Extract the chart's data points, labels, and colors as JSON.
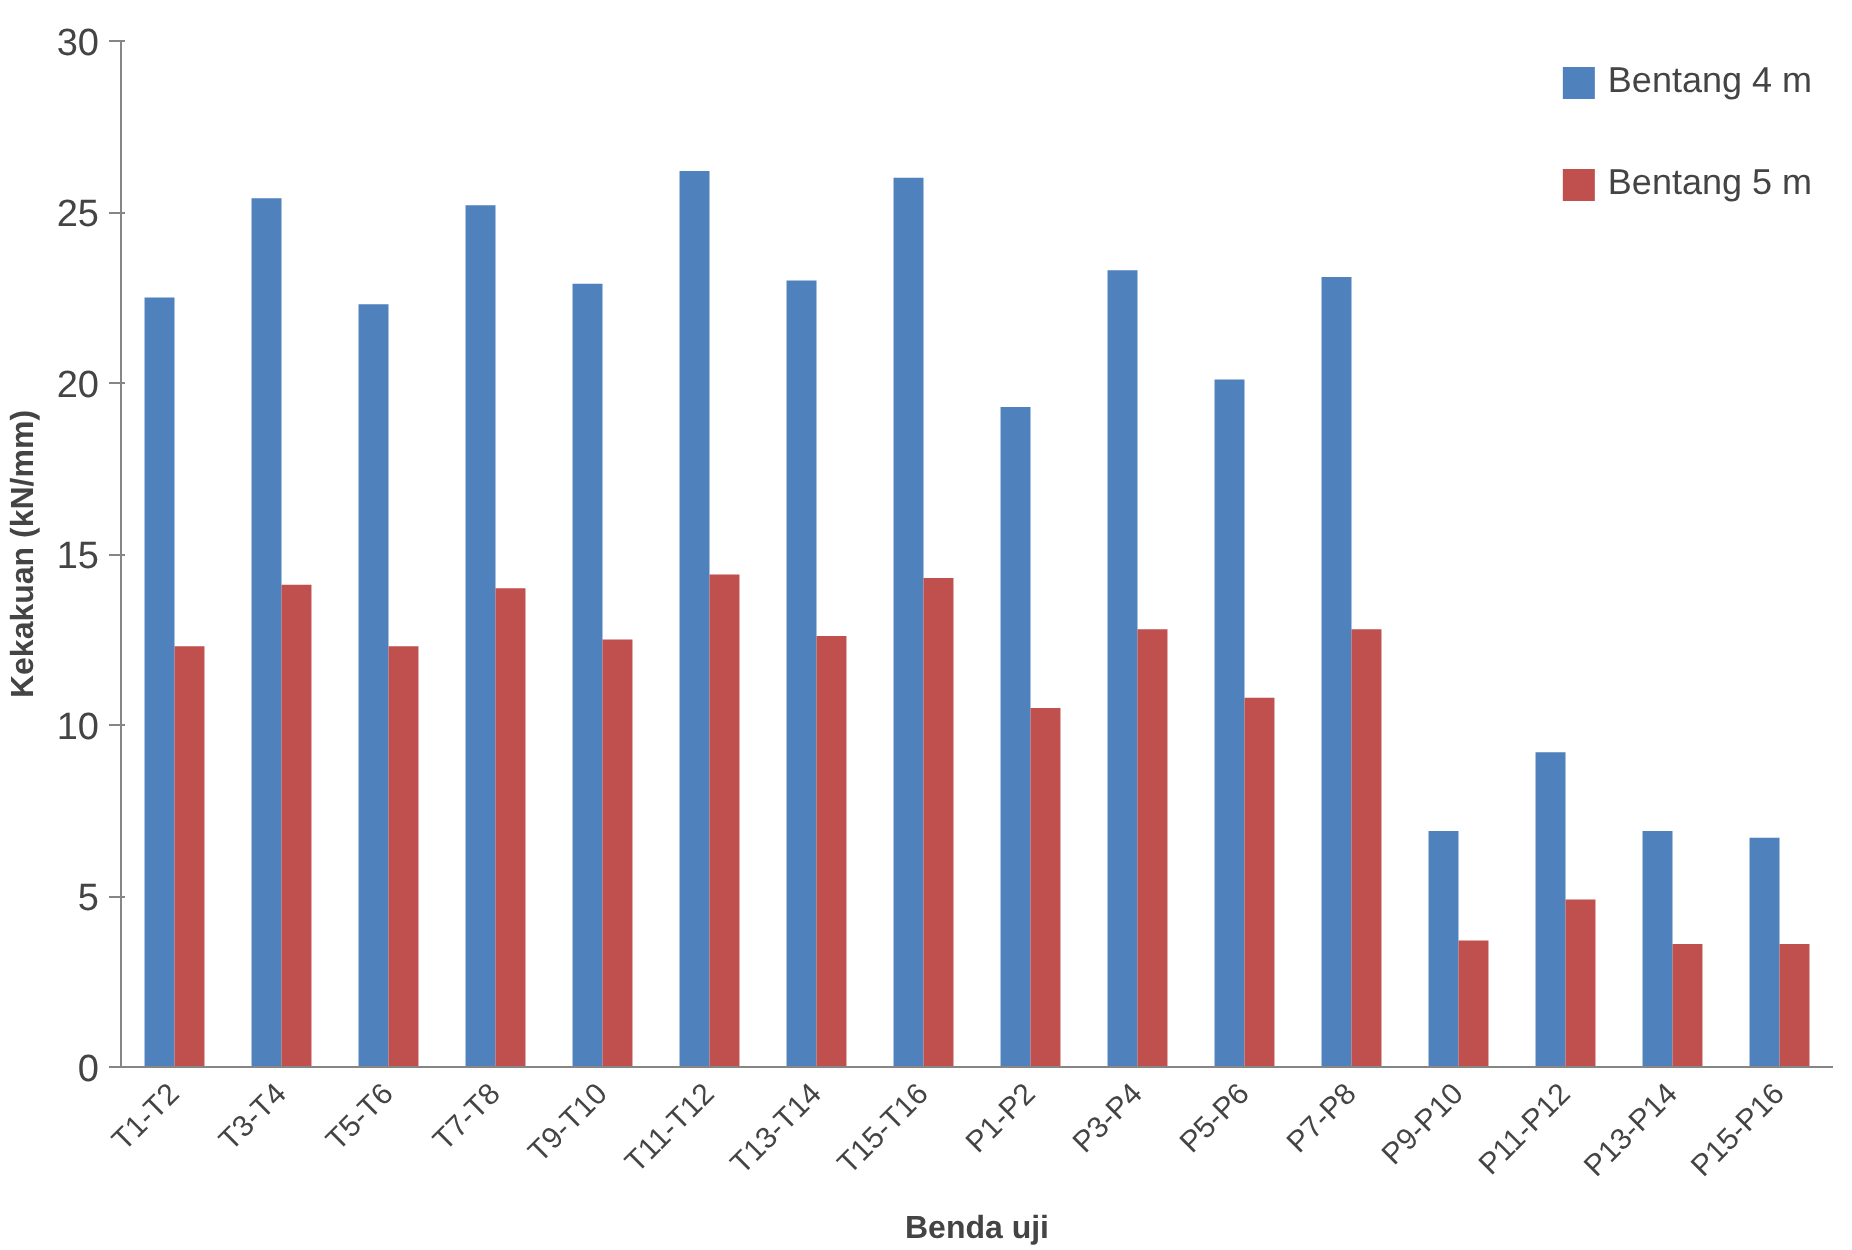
{
  "chart_data": {
    "type": "bar",
    "xlabel": "Benda uji",
    "ylabel": "Kekakuan (kN/mm)",
    "categories": [
      "T1-T2",
      "T3-T4",
      "T5-T6",
      "T7-T8",
      "T9-T10",
      "T11-T12",
      "T13-T14",
      "T15-T16",
      "P1-P2",
      "P3-P4",
      "P5-P6",
      "P7-P8",
      "P9-P10",
      "P11-P12",
      "P13-P14",
      "P15-P16"
    ],
    "series": [
      {
        "name": "Bentang 4 m",
        "color": "#4f81bd",
        "values": [
          22.5,
          25.4,
          22.3,
          25.2,
          22.9,
          26.2,
          23.0,
          26.0,
          19.3,
          23.3,
          20.1,
          23.1,
          6.9,
          9.2,
          6.9,
          6.7
        ]
      },
      {
        "name": "Bentang 5 m",
        "color": "#c0504d",
        "values": [
          12.3,
          14.1,
          12.3,
          14.0,
          12.5,
          14.4,
          12.6,
          14.3,
          10.5,
          12.8,
          10.8,
          12.8,
          3.7,
          4.9,
          3.6,
          3.6
        ]
      }
    ],
    "ylim": [
      0,
      30
    ],
    "yticks": [
      0,
      5,
      10,
      15,
      20,
      25,
      30
    ],
    "grid": false,
    "legend": "top right"
  }
}
